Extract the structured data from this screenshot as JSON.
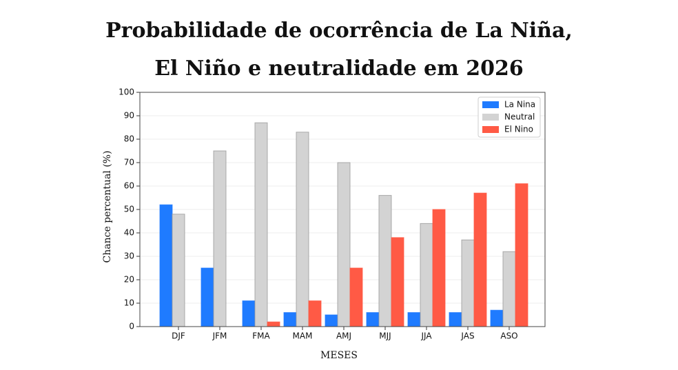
{
  "chart_data": {
    "type": "bar",
    "title": [
      "Probabilidade de ocorrência de La Niña,",
      "El Niño e neutralidade em 2026"
    ],
    "x_label": "MESES",
    "y_label": "Chance percentual (%)",
    "categories": [
      "DJF",
      "JFM",
      "FMA",
      "MAM",
      "AMJ",
      "MJJ",
      "JJA",
      "JAS",
      "ASO"
    ],
    "series": [
      {
        "name": "La Nina",
        "color": "#1f7bff",
        "values": [
          52,
          25,
          11,
          6,
          5,
          6,
          6,
          6,
          7
        ]
      },
      {
        "name": "Neutral",
        "color": "#d3d3d3",
        "values": [
          48,
          75,
          87,
          83,
          70,
          56,
          44,
          37,
          32
        ]
      },
      {
        "name": "El Nino",
        "color": "#ff5a45",
        "values": [
          0,
          0,
          2,
          11,
          25,
          38,
          50,
          57,
          61
        ]
      }
    ],
    "ylim": [
      0,
      100
    ],
    "yticks": [
      0,
      10,
      20,
      30,
      40,
      50,
      60,
      70,
      80,
      90,
      100
    ],
    "grid": true,
    "legend": "upper right"
  }
}
